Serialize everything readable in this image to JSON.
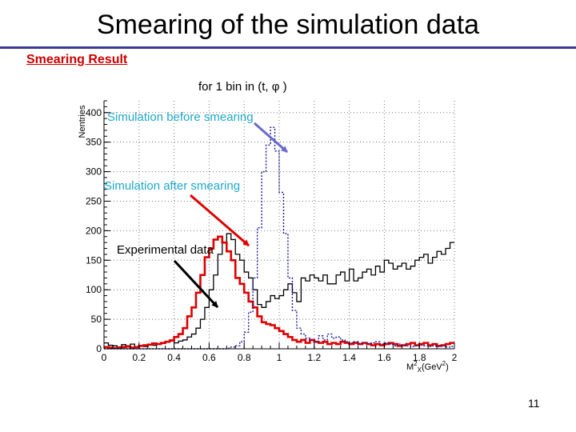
{
  "slide": {
    "title": "Smearing of the simulation data",
    "subtitle": "Smearing Result",
    "page_number": "11"
  },
  "colors": {
    "title_rule": "#3a3a9a",
    "subtitle": "#cc0000",
    "simulation_before": "#1a1a99",
    "simulation_after": "#dd0000",
    "experimental": "#000000",
    "annotation_cyan": "#1fa8c8",
    "arrow_before": "#6a6ac8",
    "arrow_after": "#dd0000",
    "arrow_experimental": "#000000"
  },
  "chart_data": {
    "type": "histogram",
    "title": "for 1 bin  in (t, φ )",
    "ylabel": "Nentries",
    "xlabel": "M",
    "xlabel_super": "2",
    "xlabel_sub": "X",
    "xlabel_units_open": "(GeV",
    "xlabel_units_super": "2",
    "xlabel_units_close": ")",
    "xlim": [
      0,
      2
    ],
    "ylim": [
      0,
      420
    ],
    "xticks": [
      "0",
      "0.2",
      "0.4",
      "0.6",
      "0.8",
      "1",
      "1.2",
      "1.4",
      "1.6",
      "1.8",
      "2"
    ],
    "yticks": [
      "0",
      "50",
      "100",
      "150",
      "200",
      "250",
      "300",
      "350",
      "400"
    ],
    "grid": true,
    "bin_width": 0.025,
    "series": [
      {
        "name": "Simulation before smearing",
        "style": "dotted",
        "values": [
          0,
          0,
          0,
          0,
          0,
          0,
          0,
          0,
          0,
          0,
          0,
          0,
          0,
          0,
          0,
          0,
          0,
          0,
          0,
          0,
          0,
          0,
          0,
          0,
          0,
          0,
          0,
          0,
          1,
          3,
          5,
          12,
          28,
          62,
          120,
          205,
          300,
          345,
          375,
          335,
          265,
          195,
          120,
          65,
          35,
          25,
          18,
          15,
          12,
          22,
          15,
          25,
          18,
          20,
          15,
          12,
          10,
          12,
          8,
          10,
          8,
          10,
          12,
          8,
          10,
          8,
          5,
          8,
          6,
          5,
          4,
          5,
          6,
          5,
          4,
          5,
          4,
          5,
          3,
          4
        ]
      },
      {
        "name": "Simulation after smearing",
        "style": "solid",
        "values": [
          3,
          2,
          1,
          2,
          3,
          4,
          2,
          3,
          5,
          6,
          7,
          9,
          8,
          10,
          12,
          14,
          20,
          25,
          35,
          55,
          70,
          95,
          125,
          155,
          170,
          185,
          190,
          180,
          165,
          150,
          120,
          110,
          95,
          80,
          70,
          55,
          45,
          42,
          40,
          35,
          30,
          25,
          20,
          15,
          12,
          15,
          10,
          15,
          12,
          10,
          12,
          8,
          10,
          8,
          12,
          10,
          8,
          10,
          8,
          10,
          8,
          6,
          8,
          6,
          8,
          10,
          8,
          5,
          6,
          8,
          10,
          6,
          8,
          10,
          6,
          8,
          5,
          6,
          8,
          10
        ]
      },
      {
        "name": "Experimental data",
        "style": "solid",
        "values": [
          10,
          6,
          5,
          3,
          7,
          5,
          8,
          3,
          5,
          4,
          8,
          6,
          8,
          9,
          12,
          15,
          10,
          13,
          15,
          20,
          25,
          35,
          50,
          70,
          100,
          125,
          160,
          180,
          195,
          185,
          160,
          150,
          130,
          120,
          100,
          75,
          70,
          80,
          90,
          85,
          90,
          100,
          110,
          95,
          80,
          120,
          115,
          125,
          120,
          115,
          125,
          110,
          110,
          125,
          130,
          115,
          135,
          115,
          120,
          130,
          135,
          125,
          140,
          130,
          150,
          145,
          135,
          140,
          145,
          135,
          140,
          150,
          155,
          160,
          145,
          155,
          165,
          160,
          170,
          180
        ]
      }
    ],
    "annotations": [
      {
        "text": "Simulation before  smearing",
        "series": "Simulation before smearing"
      },
      {
        "text": "Simulation after  smearing",
        "series": "Simulation after smearing"
      },
      {
        "text": "Experimental data",
        "series": "Experimental data"
      }
    ]
  }
}
